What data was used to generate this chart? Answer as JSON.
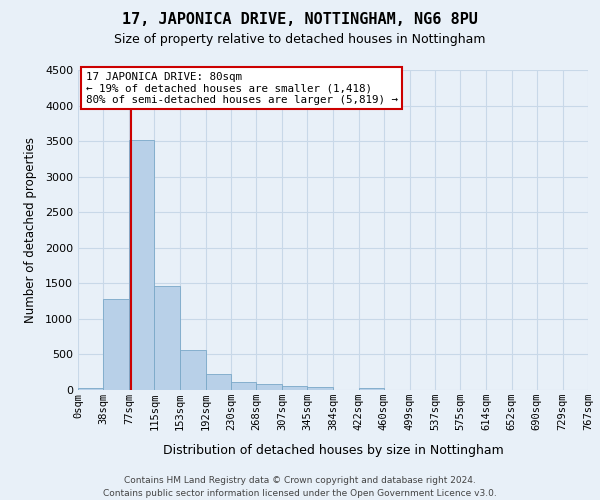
{
  "title": "17, JAPONICA DRIVE, NOTTINGHAM, NG6 8PU",
  "subtitle": "Size of property relative to detached houses in Nottingham",
  "xlabel": "Distribution of detached houses by size in Nottingham",
  "ylabel": "Number of detached properties",
  "footer_line1": "Contains HM Land Registry data © Crown copyright and database right 2024.",
  "footer_line2": "Contains public sector information licensed under the Open Government Licence v3.0.",
  "annotation_line1": "17 JAPONICA DRIVE: 80sqm",
  "annotation_line2": "← 19% of detached houses are smaller (1,418)",
  "annotation_line3": "80% of semi-detached houses are larger (5,819) →",
  "bar_color": "#b8d0e8",
  "bar_edge_color": "#7aa8c8",
  "vline_color": "#cc0000",
  "annotation_box_color": "#ffffff",
  "annotation_box_edge": "#cc0000",
  "grid_color": "#c8d8e8",
  "background_color": "#e8f0f8",
  "bins": [
    0,
    38,
    77,
    115,
    153,
    192,
    230,
    268,
    307,
    345,
    384,
    422,
    460,
    499,
    537,
    575,
    614,
    652,
    690,
    729,
    767
  ],
  "bin_labels": [
    "0sqm",
    "38sqm",
    "77sqm",
    "115sqm",
    "153sqm",
    "192sqm",
    "230sqm",
    "268sqm",
    "307sqm",
    "345sqm",
    "384sqm",
    "422sqm",
    "460sqm",
    "499sqm",
    "537sqm",
    "575sqm",
    "614sqm",
    "652sqm",
    "690sqm",
    "729sqm",
    "767sqm"
  ],
  "counts": [
    30,
    1280,
    3520,
    1460,
    560,
    220,
    115,
    80,
    55,
    40,
    0,
    35,
    0,
    0,
    0,
    0,
    0,
    0,
    0,
    0
  ],
  "vline_x": 80,
  "ylim": [
    0,
    4500
  ],
  "yticks": [
    0,
    500,
    1000,
    1500,
    2000,
    2500,
    3000,
    3500,
    4000,
    4500
  ],
  "property_size": 80,
  "figsize": [
    6.0,
    5.0
  ],
  "dpi": 100
}
